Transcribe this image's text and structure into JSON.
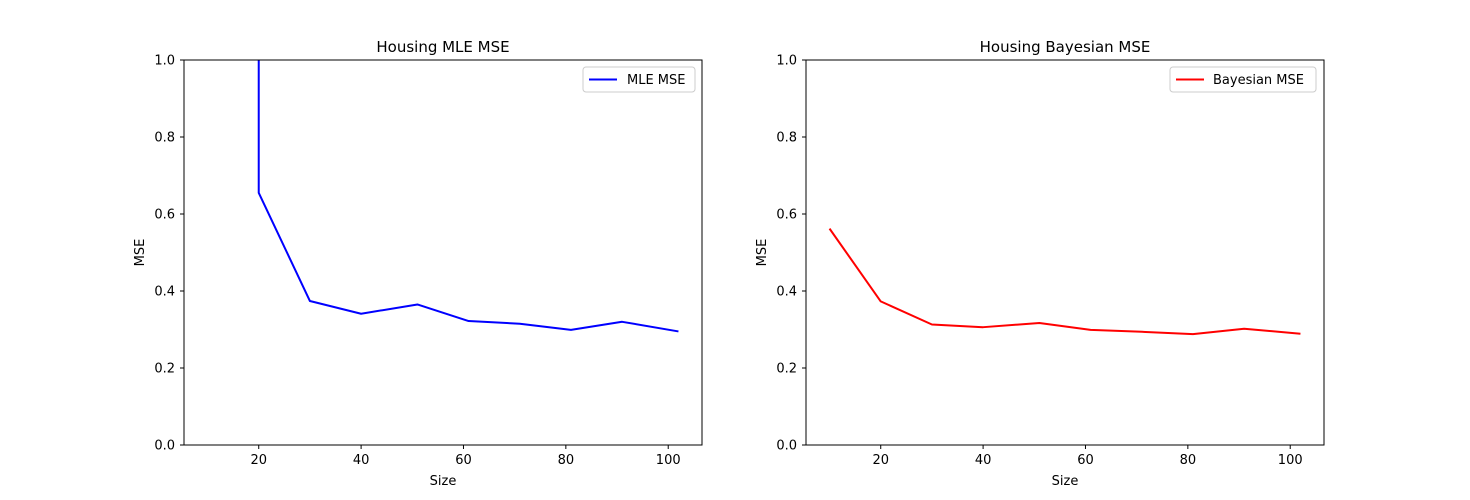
{
  "chart_data": [
    {
      "type": "line",
      "title": "Housing MLE MSE",
      "xlabel": "Size",
      "ylabel": "MSE",
      "xlim": [
        5.4,
        106.6
      ],
      "ylim": [
        0,
        1
      ],
      "xticks": [
        20,
        40,
        60,
        80,
        100
      ],
      "yticks": [
        0.0,
        0.2,
        0.4,
        0.6,
        0.8,
        1.0
      ],
      "xtick_labels": [
        "20",
        "40",
        "60",
        "80",
        "100"
      ],
      "ytick_labels": [
        "0.0",
        "0.2",
        "0.4",
        "0.6",
        "0.8",
        "1.0"
      ],
      "grid": false,
      "legend_position": "top-right",
      "series": [
        {
          "name": "MLE MSE",
          "color": "#0000ff",
          "x": [
            20,
            20,
            30,
            40,
            51,
            61,
            71,
            81,
            91,
            102
          ],
          "y": [
            1.5,
            0.655,
            0.374,
            0.341,
            0.365,
            0.322,
            0.315,
            0.299,
            0.32,
            0.295
          ]
        }
      ]
    },
    {
      "type": "line",
      "title": "Housing Bayesian MSE",
      "xlabel": "Size",
      "ylabel": "MSE",
      "xlim": [
        5.4,
        106.6
      ],
      "ylim": [
        0,
        1
      ],
      "xticks": [
        20,
        40,
        60,
        80,
        100
      ],
      "yticks": [
        0.0,
        0.2,
        0.4,
        0.6,
        0.8,
        1.0
      ],
      "xtick_labels": [
        "20",
        "40",
        "60",
        "80",
        "100"
      ],
      "ytick_labels": [
        "0.0",
        "0.2",
        "0.4",
        "0.6",
        "0.8",
        "1.0"
      ],
      "grid": false,
      "legend_position": "top-right",
      "series": [
        {
          "name": "Bayesian MSE",
          "color": "#ff0000",
          "x": [
            10,
            20,
            30,
            40,
            51,
            61,
            71,
            81,
            91,
            102
          ],
          "y": [
            0.562,
            0.373,
            0.313,
            0.306,
            0.317,
            0.299,
            0.294,
            0.288,
            0.302,
            0.289
          ]
        }
      ]
    }
  ]
}
